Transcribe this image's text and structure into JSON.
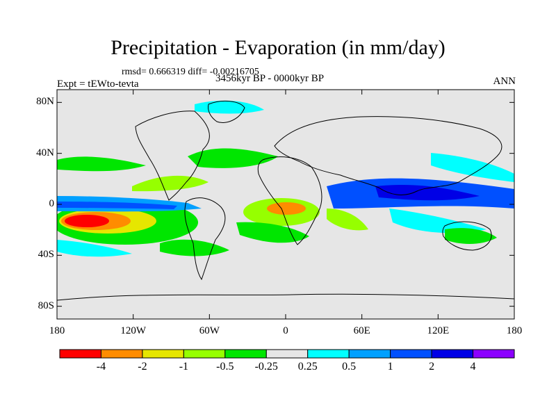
{
  "header": {
    "title": "Precipitation - Evaporation (in mm/day)",
    "stats": "rmsd= 0.666319 diff= -0.00216705",
    "experiment": "Expt = tEWto-tevta",
    "period": "3456kyr BP - 0000kyr BP",
    "season": "ANN"
  },
  "axes": {
    "lat_ticks": [
      "80N",
      "40N",
      "0",
      "40S",
      "80S"
    ],
    "lat_values": [
      80,
      40,
      0,
      -40,
      -80
    ],
    "lon_ticks": [
      "180",
      "120W",
      "60W",
      "0",
      "60E",
      "120E",
      "180"
    ],
    "lon_values": [
      -180,
      -120,
      -60,
      0,
      60,
      120,
      180
    ]
  },
  "colorbar": {
    "colors": [
      "#ff0000",
      "#ff8c00",
      "#e6e600",
      "#96ff00",
      "#00e600",
      "#e6e6e6",
      "#00ffff",
      "#00a0ff",
      "#0050ff",
      "#0000e6",
      "#8c00ff"
    ],
    "labels": [
      "-4",
      "-2",
      "-1",
      "-0.5",
      "-0.25",
      "0.25",
      "0.5",
      "1",
      "2",
      "4"
    ]
  },
  "style": {
    "land_background": "#e6e6e6",
    "coastline": "#000000"
  }
}
